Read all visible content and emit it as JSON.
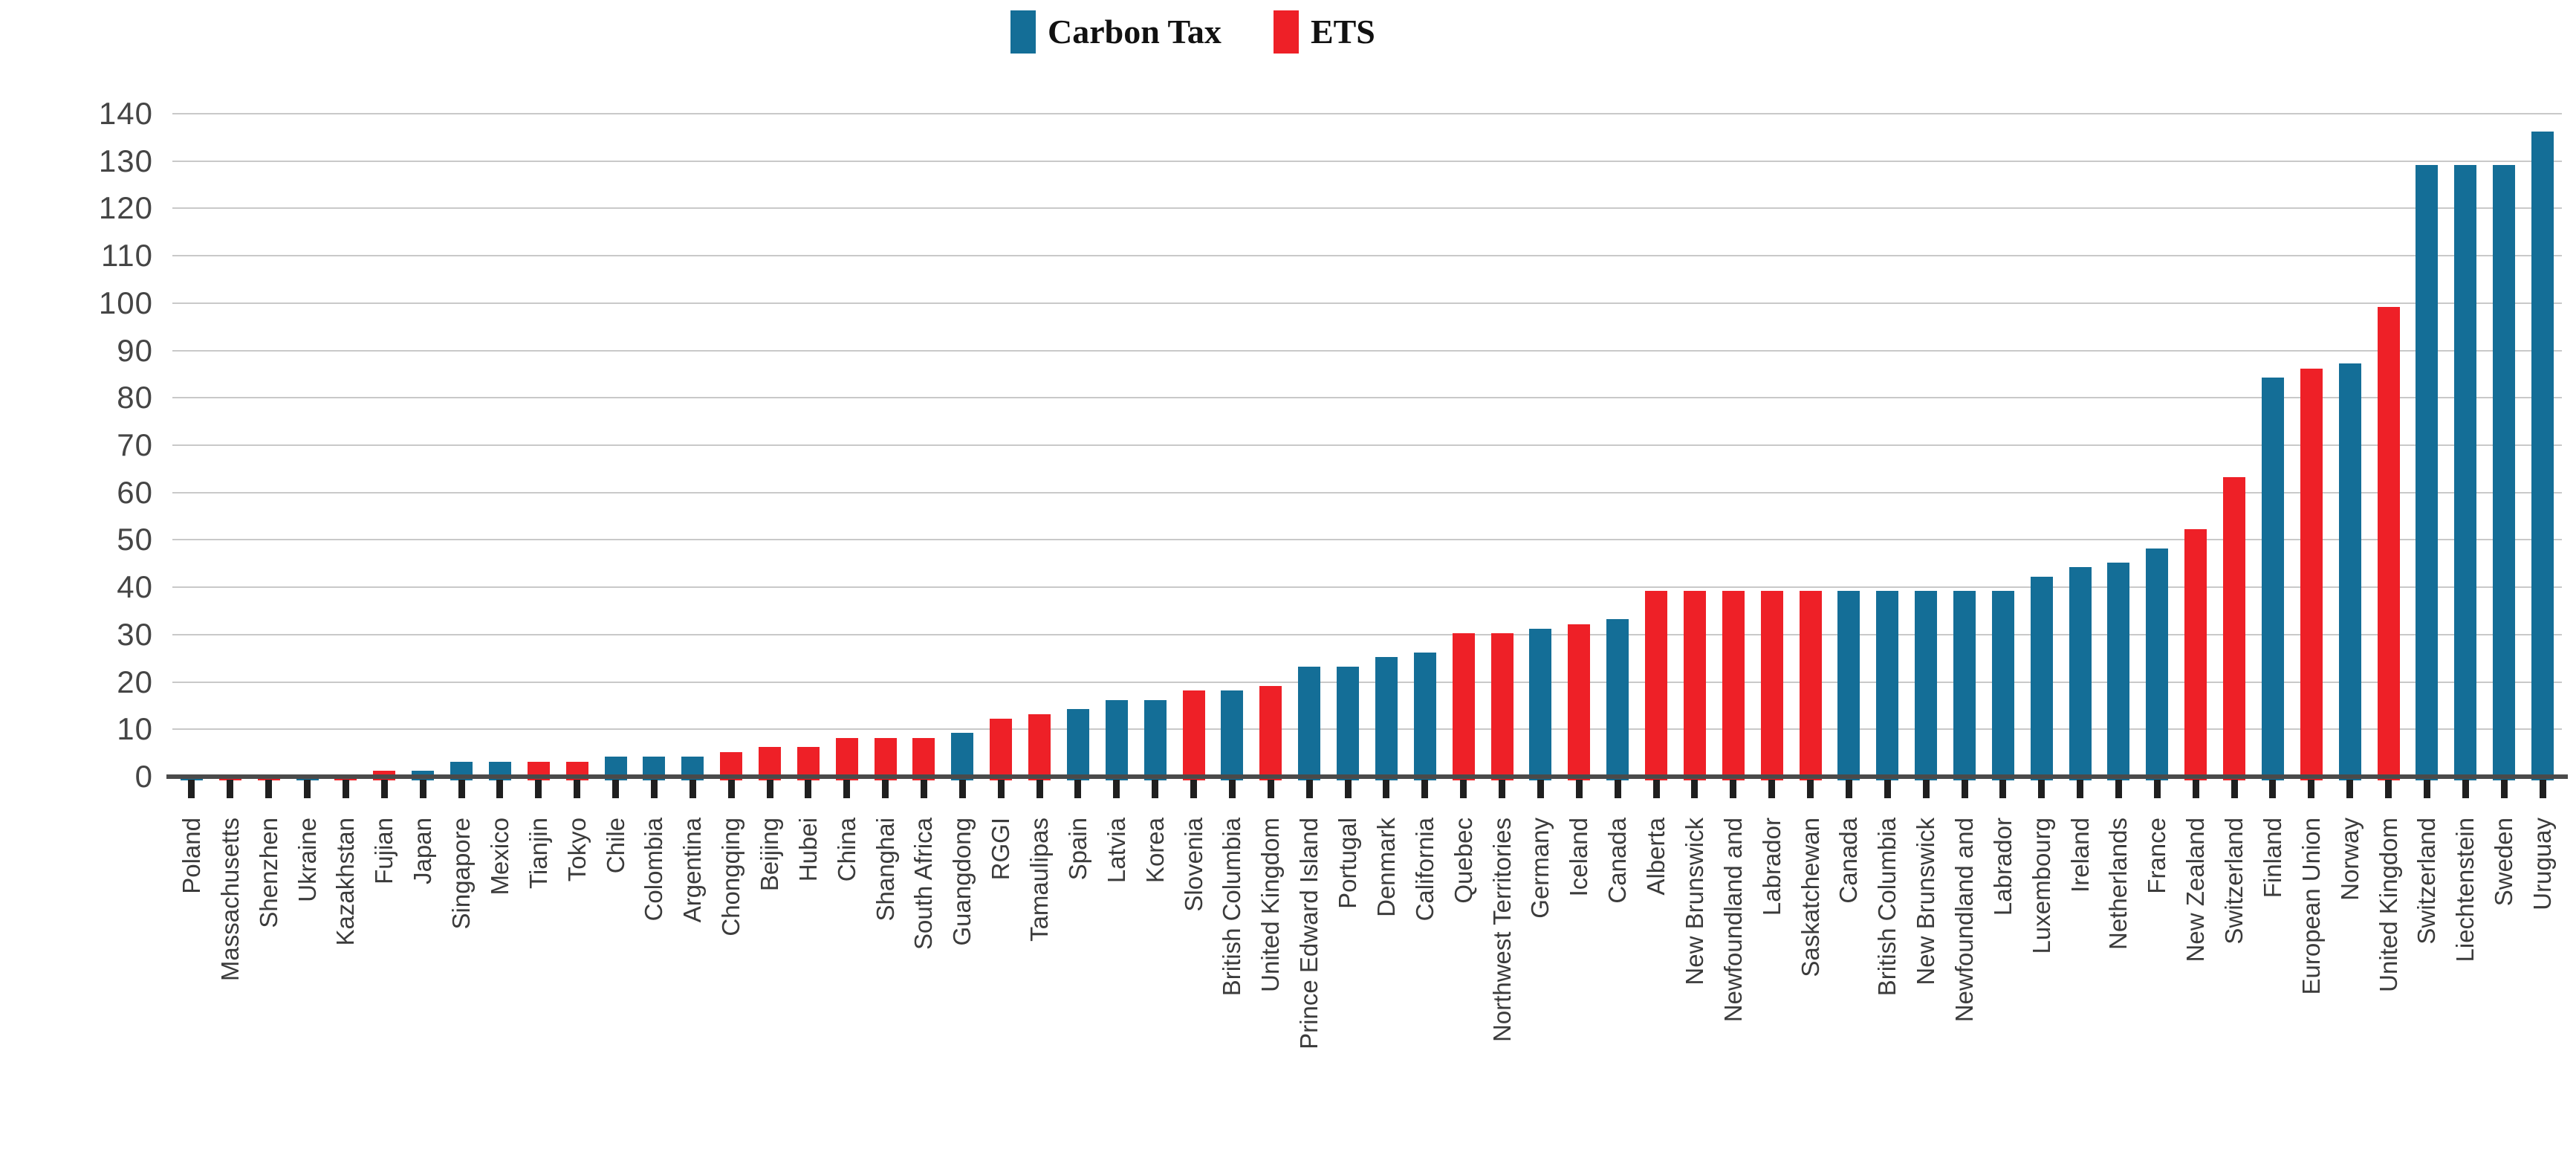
{
  "legend": {
    "items": [
      {
        "label": "Carbon Tax",
        "series": "carbon_tax",
        "color": "#146e97"
      },
      {
        "label": "ETS",
        "series": "ets",
        "color": "#ee2027"
      }
    ]
  },
  "y_axis": {
    "min": 0,
    "max": 140,
    "step": 10,
    "tick_labels": [
      "0",
      "10",
      "20",
      "30",
      "40",
      "50",
      "60",
      "70",
      "80",
      "90",
      "100",
      "110",
      "120",
      "130",
      "140"
    ]
  },
  "chart_data": {
    "type": "bar",
    "title": "",
    "xlabel": "",
    "ylabel": "",
    "ylim": [
      0,
      140
    ],
    "grid": "horizontal",
    "legend_position": "top-center",
    "series_colors": {
      "carbon_tax": "#146e97",
      "ets": "#ee2027"
    },
    "series_names": {
      "carbon_tax": "Carbon Tax",
      "ets": "ETS"
    },
    "bars": [
      {
        "label": "Poland",
        "value": 0.8,
        "series": "carbon_tax"
      },
      {
        "label": "Massachusetts",
        "value": 1.2,
        "series": "ets"
      },
      {
        "label": "Shenzhen",
        "value": 1.2,
        "series": "ets"
      },
      {
        "label": "Ukraine",
        "value": 1,
        "series": "carbon_tax"
      },
      {
        "label": "Kazakhstan",
        "value": 1.2,
        "series": "ets"
      },
      {
        "label": "Fujian",
        "value": 2,
        "series": "ets"
      },
      {
        "label": "Japan",
        "value": 2,
        "series": "carbon_tax"
      },
      {
        "label": "Singapore",
        "value": 4,
        "series": "carbon_tax"
      },
      {
        "label": "Mexico",
        "value": 4,
        "series": "carbon_tax"
      },
      {
        "label": "Tianjin",
        "value": 4,
        "series": "ets"
      },
      {
        "label": "Tokyo",
        "value": 4,
        "series": "ets"
      },
      {
        "label": "Chile",
        "value": 5,
        "series": "carbon_tax"
      },
      {
        "label": "Colombia",
        "value": 5,
        "series": "carbon_tax"
      },
      {
        "label": "Argentina",
        "value": 5,
        "series": "carbon_tax"
      },
      {
        "label": "Chongqing",
        "value": 6,
        "series": "ets"
      },
      {
        "label": "Beijing",
        "value": 7,
        "series": "ets"
      },
      {
        "label": "Hubei",
        "value": 7,
        "series": "ets"
      },
      {
        "label": "China",
        "value": 9,
        "series": "ets"
      },
      {
        "label": "Shanghai",
        "value": 9,
        "series": "ets"
      },
      {
        "label": "South Africa",
        "value": 9,
        "series": "ets"
      },
      {
        "label": "Guangdong",
        "value": 10,
        "series": "carbon_tax"
      },
      {
        "label": "RGGI",
        "value": 13,
        "series": "ets"
      },
      {
        "label": "Tamaulipas",
        "value": 14,
        "series": "ets"
      },
      {
        "label": "Spain",
        "value": 15,
        "series": "carbon_tax"
      },
      {
        "label": "Latvia",
        "value": 17,
        "series": "carbon_tax"
      },
      {
        "label": "Korea",
        "value": 17,
        "series": "carbon_tax"
      },
      {
        "label": "Slovenia",
        "value": 19,
        "series": "ets"
      },
      {
        "label": "British Columbia",
        "value": 19,
        "series": "carbon_tax"
      },
      {
        "label": "United Kingdom",
        "value": 20,
        "series": "ets"
      },
      {
        "label": "Prince Edward Island",
        "value": 24,
        "series": "carbon_tax"
      },
      {
        "label": "Portugal",
        "value": 24,
        "series": "carbon_tax"
      },
      {
        "label": "Denmark",
        "value": 26,
        "series": "carbon_tax"
      },
      {
        "label": "California",
        "value": 27,
        "series": "carbon_tax"
      },
      {
        "label": "Quebec",
        "value": 31,
        "series": "ets"
      },
      {
        "label": "Northwest Territories",
        "value": 31,
        "series": "ets"
      },
      {
        "label": "Germany",
        "value": 32,
        "series": "carbon_tax"
      },
      {
        "label": "Iceland",
        "value": 33,
        "series": "ets"
      },
      {
        "label": "Canada",
        "value": 34,
        "series": "carbon_tax"
      },
      {
        "label": "Alberta",
        "value": 40,
        "series": "ets"
      },
      {
        "label": "New Brunswick",
        "value": 40,
        "series": "ets"
      },
      {
        "label": "Newfoundland and",
        "value": 40,
        "series": "ets"
      },
      {
        "label": "Labrador",
        "value": 40,
        "series": "ets"
      },
      {
        "label": "Saskatchewan",
        "value": 40,
        "series": "ets"
      },
      {
        "label": "Canada",
        "value": 40,
        "series": "carbon_tax"
      },
      {
        "label": "British Columbia",
        "value": 40,
        "series": "carbon_tax"
      },
      {
        "label": "New Brunswick",
        "value": 40,
        "series": "carbon_tax"
      },
      {
        "label": "Newfoundland and",
        "value": 40,
        "series": "carbon_tax"
      },
      {
        "label": "Labrador",
        "value": 40,
        "series": "carbon_tax"
      },
      {
        "label": "Luxembourg",
        "value": 43,
        "series": "carbon_tax"
      },
      {
        "label": "Ireland",
        "value": 45,
        "series": "carbon_tax"
      },
      {
        "label": "Netherlands",
        "value": 46,
        "series": "carbon_tax"
      },
      {
        "label": "France",
        "value": 49,
        "series": "carbon_tax"
      },
      {
        "label": "New Zealand",
        "value": 53,
        "series": "ets"
      },
      {
        "label": "Switzerland",
        "value": 64,
        "series": "ets"
      },
      {
        "label": "Finland",
        "value": 85,
        "series": "carbon_tax"
      },
      {
        "label": "European Union",
        "value": 87,
        "series": "ets"
      },
      {
        "label": "Norway",
        "value": 88,
        "series": "carbon_tax"
      },
      {
        "label": "United Kingdom",
        "value": 100,
        "series": "ets"
      },
      {
        "label": "Switzerland",
        "value": 130,
        "series": "carbon_tax"
      },
      {
        "label": "Liechtenstein",
        "value": 130,
        "series": "carbon_tax"
      },
      {
        "label": "Sweden",
        "value": 130,
        "series": "carbon_tax"
      },
      {
        "label": "Uruguay",
        "value": 137,
        "series": "carbon_tax"
      }
    ]
  }
}
